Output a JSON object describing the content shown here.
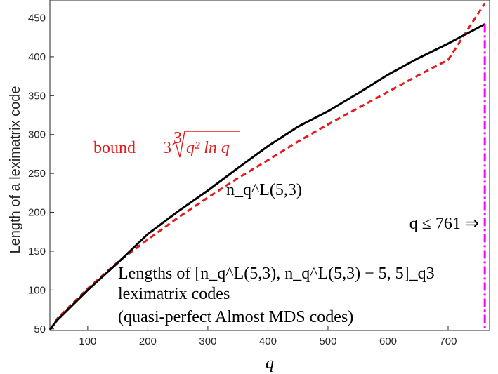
{
  "chart_data": {
    "type": "line",
    "xlabel": "q",
    "ylabel": "Length of a leximatrix code",
    "xlim": [
      37,
      769
    ],
    "ylim": [
      48,
      473
    ],
    "xticks": [
      100,
      200,
      300,
      400,
      500,
      600,
      700
    ],
    "yticks": [
      50,
      100,
      150,
      200,
      250,
      300,
      350,
      400,
      450
    ],
    "grid": false,
    "series": [
      {
        "name": "bound",
        "label": "bound 3∛(q² ln q)",
        "style": "dashed",
        "color": "#e41a1c",
        "x": [
          37,
          50,
          100,
          150,
          200,
          250,
          300,
          350,
          400,
          450,
          500,
          550,
          600,
          650,
          700,
          761
        ],
        "y": [
          49,
          64,
          102,
          136,
          165,
          193,
          219,
          244,
          267,
          291,
          313,
          334,
          355,
          376,
          396,
          469
        ]
      },
      {
        "name": "n_q^L(5,3)",
        "label": "n_q^L(5,3)",
        "style": "solid",
        "color": "#000000",
        "x": [
          37,
          50,
          100,
          150,
          200,
          250,
          300,
          350,
          400,
          450,
          500,
          550,
          600,
          650,
          700,
          761
        ],
        "y": [
          49,
          62,
          100,
          135,
          172,
          201,
          228,
          257,
          285,
          310,
          330,
          353,
          377,
          398,
          417,
          442
        ]
      }
    ],
    "vline": {
      "x": 761,
      "style": "dash-dot",
      "color": "#ff00ff"
    },
    "annotations": {
      "bound_word": "bound",
      "bound_coef": "3",
      "bound_root_index": "3",
      "bound_radicand": "q² ln q",
      "curve_label": "n_q^L(5,3)",
      "vline_label": "q ≤ 761 ⇒",
      "caption_line1": "Lengths of [n_q^L(5,3), n_q^L(5,3) − 5, 5]_q3",
      "caption_line2": "leximatrix codes",
      "caption_line3": "(quasi-perfect Almost MDS codes)"
    }
  }
}
